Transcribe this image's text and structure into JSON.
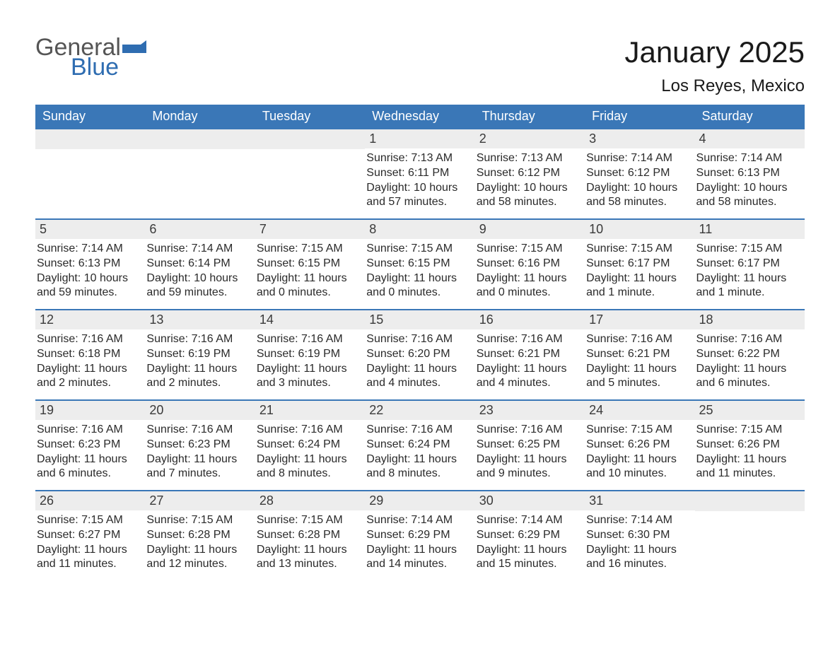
{
  "logo": {
    "text1": "General",
    "text2": "Blue",
    "accent_color": "#2f6db1"
  },
  "title": "January 2025",
  "location": "Los Reyes, Mexico",
  "colors": {
    "header_bg": "#3a77b7",
    "header_text": "#ffffff",
    "daynum_bg": "#ededed",
    "row_border": "#3a77b7",
    "body_text": "#2a2a2a",
    "page_bg": "#ffffff"
  },
  "weekdays": [
    "Sunday",
    "Monday",
    "Tuesday",
    "Wednesday",
    "Thursday",
    "Friday",
    "Saturday"
  ],
  "weeks": [
    [
      null,
      null,
      null,
      {
        "n": "1",
        "sunrise": "7:13 AM",
        "sunset": "6:11 PM",
        "daylight": "10 hours and 57 minutes."
      },
      {
        "n": "2",
        "sunrise": "7:13 AM",
        "sunset": "6:12 PM",
        "daylight": "10 hours and 58 minutes."
      },
      {
        "n": "3",
        "sunrise": "7:14 AM",
        "sunset": "6:12 PM",
        "daylight": "10 hours and 58 minutes."
      },
      {
        "n": "4",
        "sunrise": "7:14 AM",
        "sunset": "6:13 PM",
        "daylight": "10 hours and 58 minutes."
      }
    ],
    [
      {
        "n": "5",
        "sunrise": "7:14 AM",
        "sunset": "6:13 PM",
        "daylight": "10 hours and 59 minutes."
      },
      {
        "n": "6",
        "sunrise": "7:14 AM",
        "sunset": "6:14 PM",
        "daylight": "10 hours and 59 minutes."
      },
      {
        "n": "7",
        "sunrise": "7:15 AM",
        "sunset": "6:15 PM",
        "daylight": "11 hours and 0 minutes."
      },
      {
        "n": "8",
        "sunrise": "7:15 AM",
        "sunset": "6:15 PM",
        "daylight": "11 hours and 0 minutes."
      },
      {
        "n": "9",
        "sunrise": "7:15 AM",
        "sunset": "6:16 PM",
        "daylight": "11 hours and 0 minutes."
      },
      {
        "n": "10",
        "sunrise": "7:15 AM",
        "sunset": "6:17 PM",
        "daylight": "11 hours and 1 minute."
      },
      {
        "n": "11",
        "sunrise": "7:15 AM",
        "sunset": "6:17 PM",
        "daylight": "11 hours and 1 minute."
      }
    ],
    [
      {
        "n": "12",
        "sunrise": "7:16 AM",
        "sunset": "6:18 PM",
        "daylight": "11 hours and 2 minutes."
      },
      {
        "n": "13",
        "sunrise": "7:16 AM",
        "sunset": "6:19 PM",
        "daylight": "11 hours and 2 minutes."
      },
      {
        "n": "14",
        "sunrise": "7:16 AM",
        "sunset": "6:19 PM",
        "daylight": "11 hours and 3 minutes."
      },
      {
        "n": "15",
        "sunrise": "7:16 AM",
        "sunset": "6:20 PM",
        "daylight": "11 hours and 4 minutes."
      },
      {
        "n": "16",
        "sunrise": "7:16 AM",
        "sunset": "6:21 PM",
        "daylight": "11 hours and 4 minutes."
      },
      {
        "n": "17",
        "sunrise": "7:16 AM",
        "sunset": "6:21 PM",
        "daylight": "11 hours and 5 minutes."
      },
      {
        "n": "18",
        "sunrise": "7:16 AM",
        "sunset": "6:22 PM",
        "daylight": "11 hours and 6 minutes."
      }
    ],
    [
      {
        "n": "19",
        "sunrise": "7:16 AM",
        "sunset": "6:23 PM",
        "daylight": "11 hours and 6 minutes."
      },
      {
        "n": "20",
        "sunrise": "7:16 AM",
        "sunset": "6:23 PM",
        "daylight": "11 hours and 7 minutes."
      },
      {
        "n": "21",
        "sunrise": "7:16 AM",
        "sunset": "6:24 PM",
        "daylight": "11 hours and 8 minutes."
      },
      {
        "n": "22",
        "sunrise": "7:16 AM",
        "sunset": "6:24 PM",
        "daylight": "11 hours and 8 minutes."
      },
      {
        "n": "23",
        "sunrise": "7:16 AM",
        "sunset": "6:25 PM",
        "daylight": "11 hours and 9 minutes."
      },
      {
        "n": "24",
        "sunrise": "7:15 AM",
        "sunset": "6:26 PM",
        "daylight": "11 hours and 10 minutes."
      },
      {
        "n": "25",
        "sunrise": "7:15 AM",
        "sunset": "6:26 PM",
        "daylight": "11 hours and 11 minutes."
      }
    ],
    [
      {
        "n": "26",
        "sunrise": "7:15 AM",
        "sunset": "6:27 PM",
        "daylight": "11 hours and 11 minutes."
      },
      {
        "n": "27",
        "sunrise": "7:15 AM",
        "sunset": "6:28 PM",
        "daylight": "11 hours and 12 minutes."
      },
      {
        "n": "28",
        "sunrise": "7:15 AM",
        "sunset": "6:28 PM",
        "daylight": "11 hours and 13 minutes."
      },
      {
        "n": "29",
        "sunrise": "7:14 AM",
        "sunset": "6:29 PM",
        "daylight": "11 hours and 14 minutes."
      },
      {
        "n": "30",
        "sunrise": "7:14 AM",
        "sunset": "6:29 PM",
        "daylight": "11 hours and 15 minutes."
      },
      {
        "n": "31",
        "sunrise": "7:14 AM",
        "sunset": "6:30 PM",
        "daylight": "11 hours and 16 minutes."
      },
      null
    ]
  ],
  "labels": {
    "sunrise": "Sunrise:",
    "sunset": "Sunset:",
    "daylight": "Daylight:"
  }
}
